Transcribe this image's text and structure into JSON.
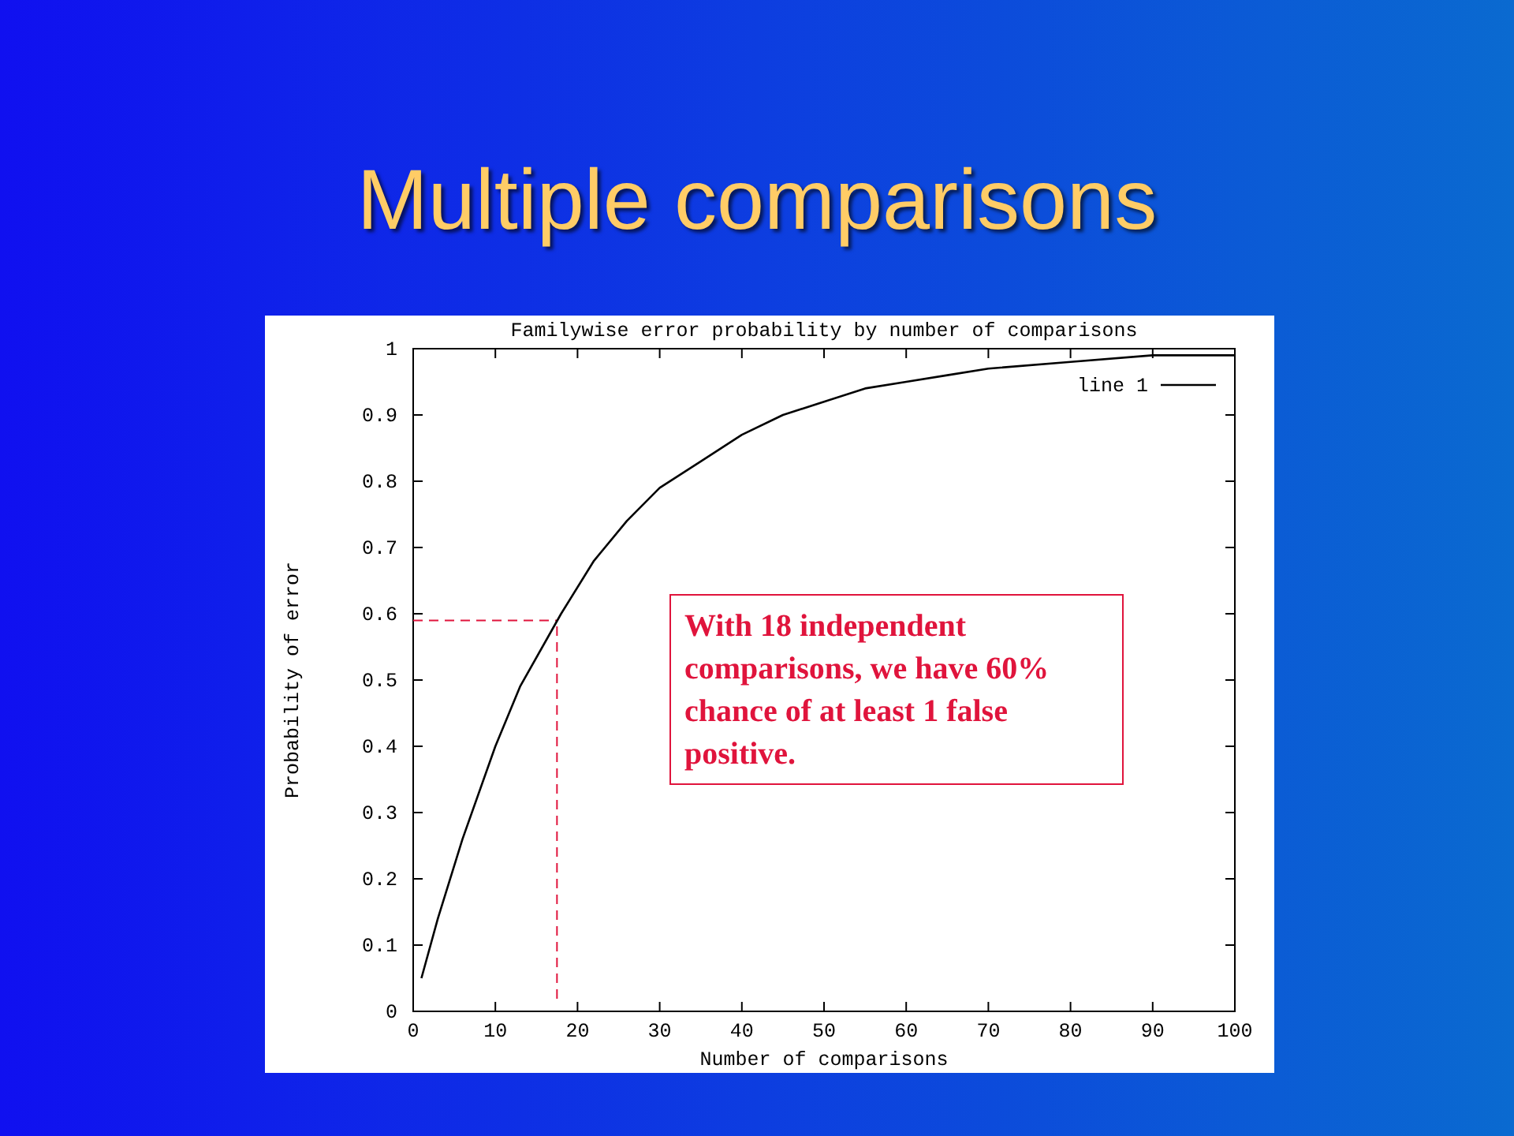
{
  "chart_data": {
    "type": "line",
    "title": "Multiple comparisons",
    "subtitle": "Familywise error probability by number of comparisons",
    "xlabel": "Number of comparisons",
    "ylabel": "Probability of error",
    "x": [
      1,
      3,
      6,
      10,
      13,
      18,
      22,
      26,
      30,
      35,
      40,
      45,
      50,
      55,
      60,
      65,
      70,
      80,
      90,
      100
    ],
    "series": [
      {
        "name": "line 1",
        "color": "#000000",
        "values": [
          0.05,
          0.14,
          0.26,
          0.4,
          0.49,
          0.6,
          0.68,
          0.74,
          0.79,
          0.83,
          0.87,
          0.9,
          0.92,
          0.94,
          0.95,
          0.96,
          0.97,
          0.98,
          0.99,
          0.99
        ]
      }
    ],
    "xlim": [
      0,
      100
    ],
    "xticks": [
      0,
      10,
      20,
      30,
      40,
      50,
      60,
      70,
      80,
      90,
      100
    ],
    "ylim": [
      0,
      1
    ],
    "yticks": [
      0,
      0.1,
      0.2,
      0.3,
      0.4,
      0.5,
      0.6,
      0.7,
      0.8,
      0.9,
      1
    ],
    "ref_lines": [
      {
        "axis": "x",
        "value": 17.5,
        "color": "#e0143c",
        "line_style": "dashed"
      },
      {
        "axis": "y",
        "value": 0.59,
        "color": "#e0143c",
        "line_style": "dashed"
      }
    ],
    "annotations": [
      "With 18 independent comparisons, we have 60% chance of at least 1 false positive."
    ],
    "legend": "top right",
    "grid": false,
    "marker": "none",
    "line_style": "solid"
  }
}
